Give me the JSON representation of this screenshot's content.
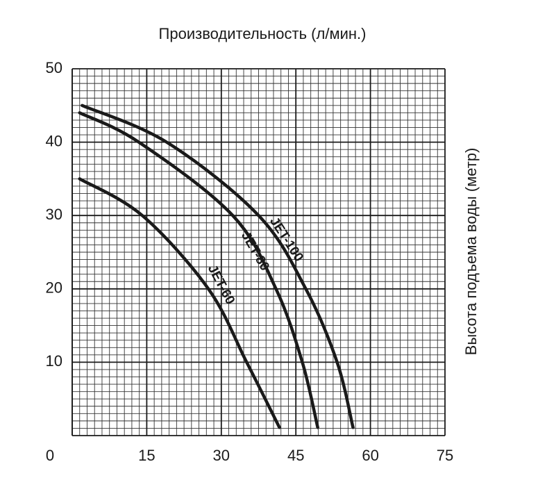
{
  "chart_data": {
    "type": "line",
    "title": "Производительность (л/мин.)",
    "y_axis_label": "Высота подъема воды (метр)",
    "xlim": [
      0,
      75
    ],
    "xticks": [
      0,
      15,
      30,
      45,
      60,
      75
    ],
    "ylim": [
      0,
      50
    ],
    "yticks": [
      10,
      20,
      30,
      40,
      50
    ],
    "grid": true,
    "series": [
      {
        "name": "JET-100",
        "color": "#1a1a1a",
        "x": [
          2,
          19,
          37.5,
          47,
          53.3,
          56.5
        ],
        "values": [
          45,
          40,
          30,
          20,
          10,
          1.1
        ]
      },
      {
        "name": "JET-80",
        "color": "#1a1a1a",
        "x": [
          1.5,
          13.4,
          32.3,
          41,
          46.3,
          49.4
        ],
        "values": [
          44,
          40,
          30,
          20,
          10,
          1.1
        ]
      },
      {
        "name": "JET-60",
        "color": "#1a1a1a",
        "x": [
          1.5,
          14.1,
          27.4,
          35.1,
          41.7
        ],
        "values": [
          35,
          30,
          20,
          10,
          1.1
        ]
      }
    ]
  }
}
